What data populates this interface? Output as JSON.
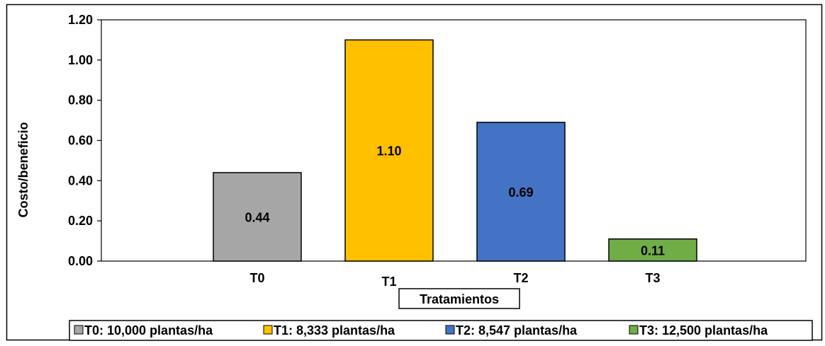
{
  "chart_data": {
    "type": "bar",
    "title": "",
    "xlabel": "Tratamientos",
    "ylabel": "Costo/beneficio",
    "categories": [
      "T0",
      "T1",
      "T2",
      "T3"
    ],
    "values": [
      0.44,
      1.1,
      0.69,
      0.11
    ],
    "value_labels": [
      "0.44",
      "1.10",
      "0.69",
      "0.11"
    ],
    "ylim": [
      0,
      1.2
    ],
    "yticks": [
      0,
      0.2,
      0.4,
      0.6,
      0.8,
      1.0,
      1.2
    ],
    "ytick_labels": [
      "0.00",
      "0.20",
      "0.40",
      "0.60",
      "0.80",
      "1.00",
      "1.20"
    ],
    "colors": [
      "#A6A6A6",
      "#FFC000",
      "#4472C4",
      "#70AD47"
    ],
    "legend": {
      "placement": "bottom",
      "entries": [
        "T0: 10,000 plantas/ha",
        "T1: 8,333 plantas/ha",
        "T2: 8,547 plantas/ha",
        "T3: 12,500 plantas/ha"
      ]
    },
    "grid": false
  }
}
